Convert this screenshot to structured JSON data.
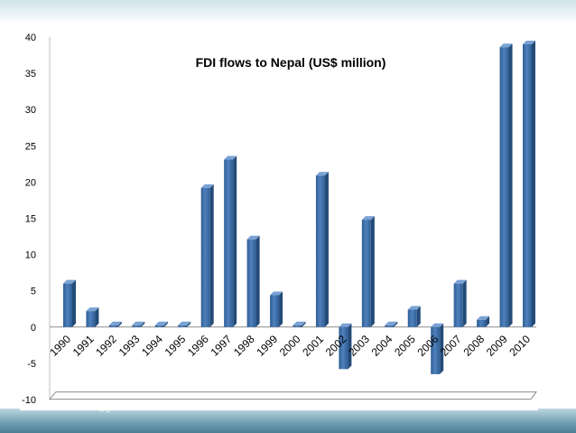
{
  "chart_data": {
    "type": "bar",
    "title": "FDI flows to Nepal (US$ million)",
    "categories": [
      "1990",
      "1991",
      "1992",
      "1993",
      "1994",
      "1995",
      "1996",
      "1997",
      "1998",
      "1999",
      "2000",
      "2001",
      "2002",
      "2003",
      "2004",
      "2005",
      "2006",
      "2007",
      "2008",
      "2009",
      "2010"
    ],
    "values": [
      6,
      2.2,
      0.1,
      0.1,
      0.1,
      0.1,
      19.2,
      23.1,
      12.1,
      4.4,
      0,
      20.9,
      -5.8,
      14.8,
      0,
      2.4,
      -6.5,
      6.0,
      1.0,
      38.6,
      39.0
    ],
    "ylim": [
      -10,
      40
    ],
    "yticks": [
      40,
      35,
      30,
      25,
      20,
      15,
      10,
      5,
      0,
      -5,
      -10
    ],
    "xlabel": "",
    "ylabel": "",
    "grid": false,
    "legend": "none",
    "bar_color": "#4f81bd"
  },
  "footer": {
    "credit": "kanchan.kandel595@gmail.com"
  }
}
